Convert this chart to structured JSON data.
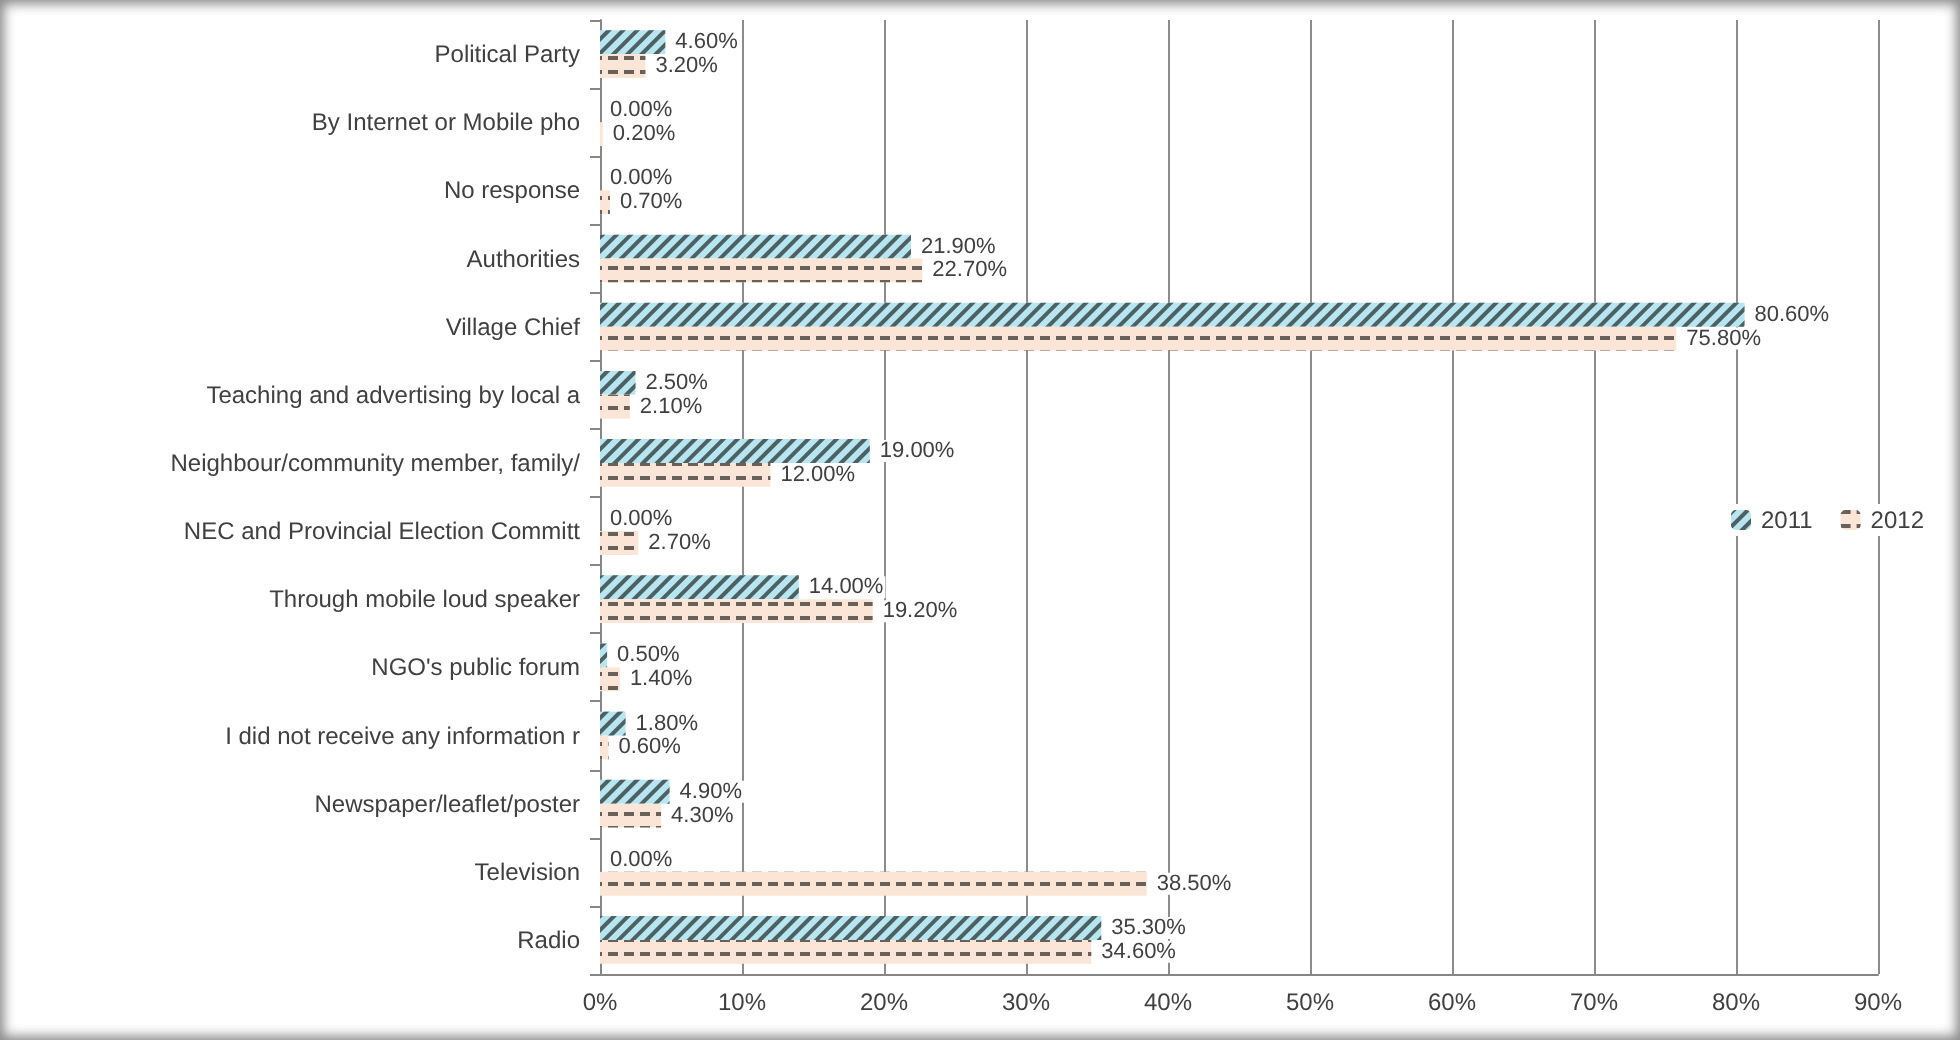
{
  "chart_data": {
    "type": "bar",
    "orientation": "horizontal",
    "categories": [
      "Political Party",
      "By Internet or Mobile pho",
      "No response",
      "Authorities",
      "Village Chief",
      "Teaching and advertising by local a",
      "Neighbour/community member, family/",
      "NEC and Provincial Election Committ",
      "Through mobile loud speaker",
      "NGO's public forum",
      "I did not receive any information r",
      "Newspaper/leaflet/poster",
      "Television",
      "Radio"
    ],
    "series": [
      {
        "name": "2011",
        "color": "#b7e6f0",
        "values": [
          4.6,
          0,
          0,
          21.9,
          80.6,
          2.5,
          19,
          0,
          14,
          0.5,
          1.8,
          4.9,
          0,
          35.3
        ],
        "value_labels": [
          "4.60%",
          "0.00%",
          "0.00%",
          "21.90%",
          "80.60%",
          "2.50%",
          "19.00%",
          "0.00%",
          "14.00%",
          "0.50%",
          "1.80%",
          "4.90%",
          "0.00%",
          "35.30%"
        ]
      },
      {
        "name": "2012",
        "color": "#fbe5d6",
        "values": [
          3.2,
          0.2,
          0.7,
          22.7,
          75.8,
          2.1,
          12,
          2.7,
          19.2,
          1.4,
          0.6,
          4.3,
          38.5,
          34.6
        ],
        "value_labels": [
          "3.20%",
          "0.20%",
          "0.70%",
          "22.70%",
          "75.80%",
          "2.10%",
          "12.00%",
          "2.70%",
          "19.20%",
          "1.40%",
          "0.60%",
          "4.30%",
          "38.50%",
          "34.60%"
        ]
      }
    ],
    "xlim": [
      0,
      90
    ],
    "xticks": [
      {
        "value": 0,
        "label": "0%"
      },
      {
        "value": 10,
        "label": "10%"
      },
      {
        "value": 20,
        "label": "20%"
      },
      {
        "value": 30,
        "label": "30%"
      },
      {
        "value": 40,
        "label": "40%"
      },
      {
        "value": 50,
        "label": "50%"
      },
      {
        "value": 60,
        "label": "60%"
      },
      {
        "value": 70,
        "label": "70%"
      },
      {
        "value": 80,
        "label": "80%"
      },
      {
        "value": 90,
        "label": "90%"
      }
    ],
    "grid": "x",
    "legend": "right"
  }
}
